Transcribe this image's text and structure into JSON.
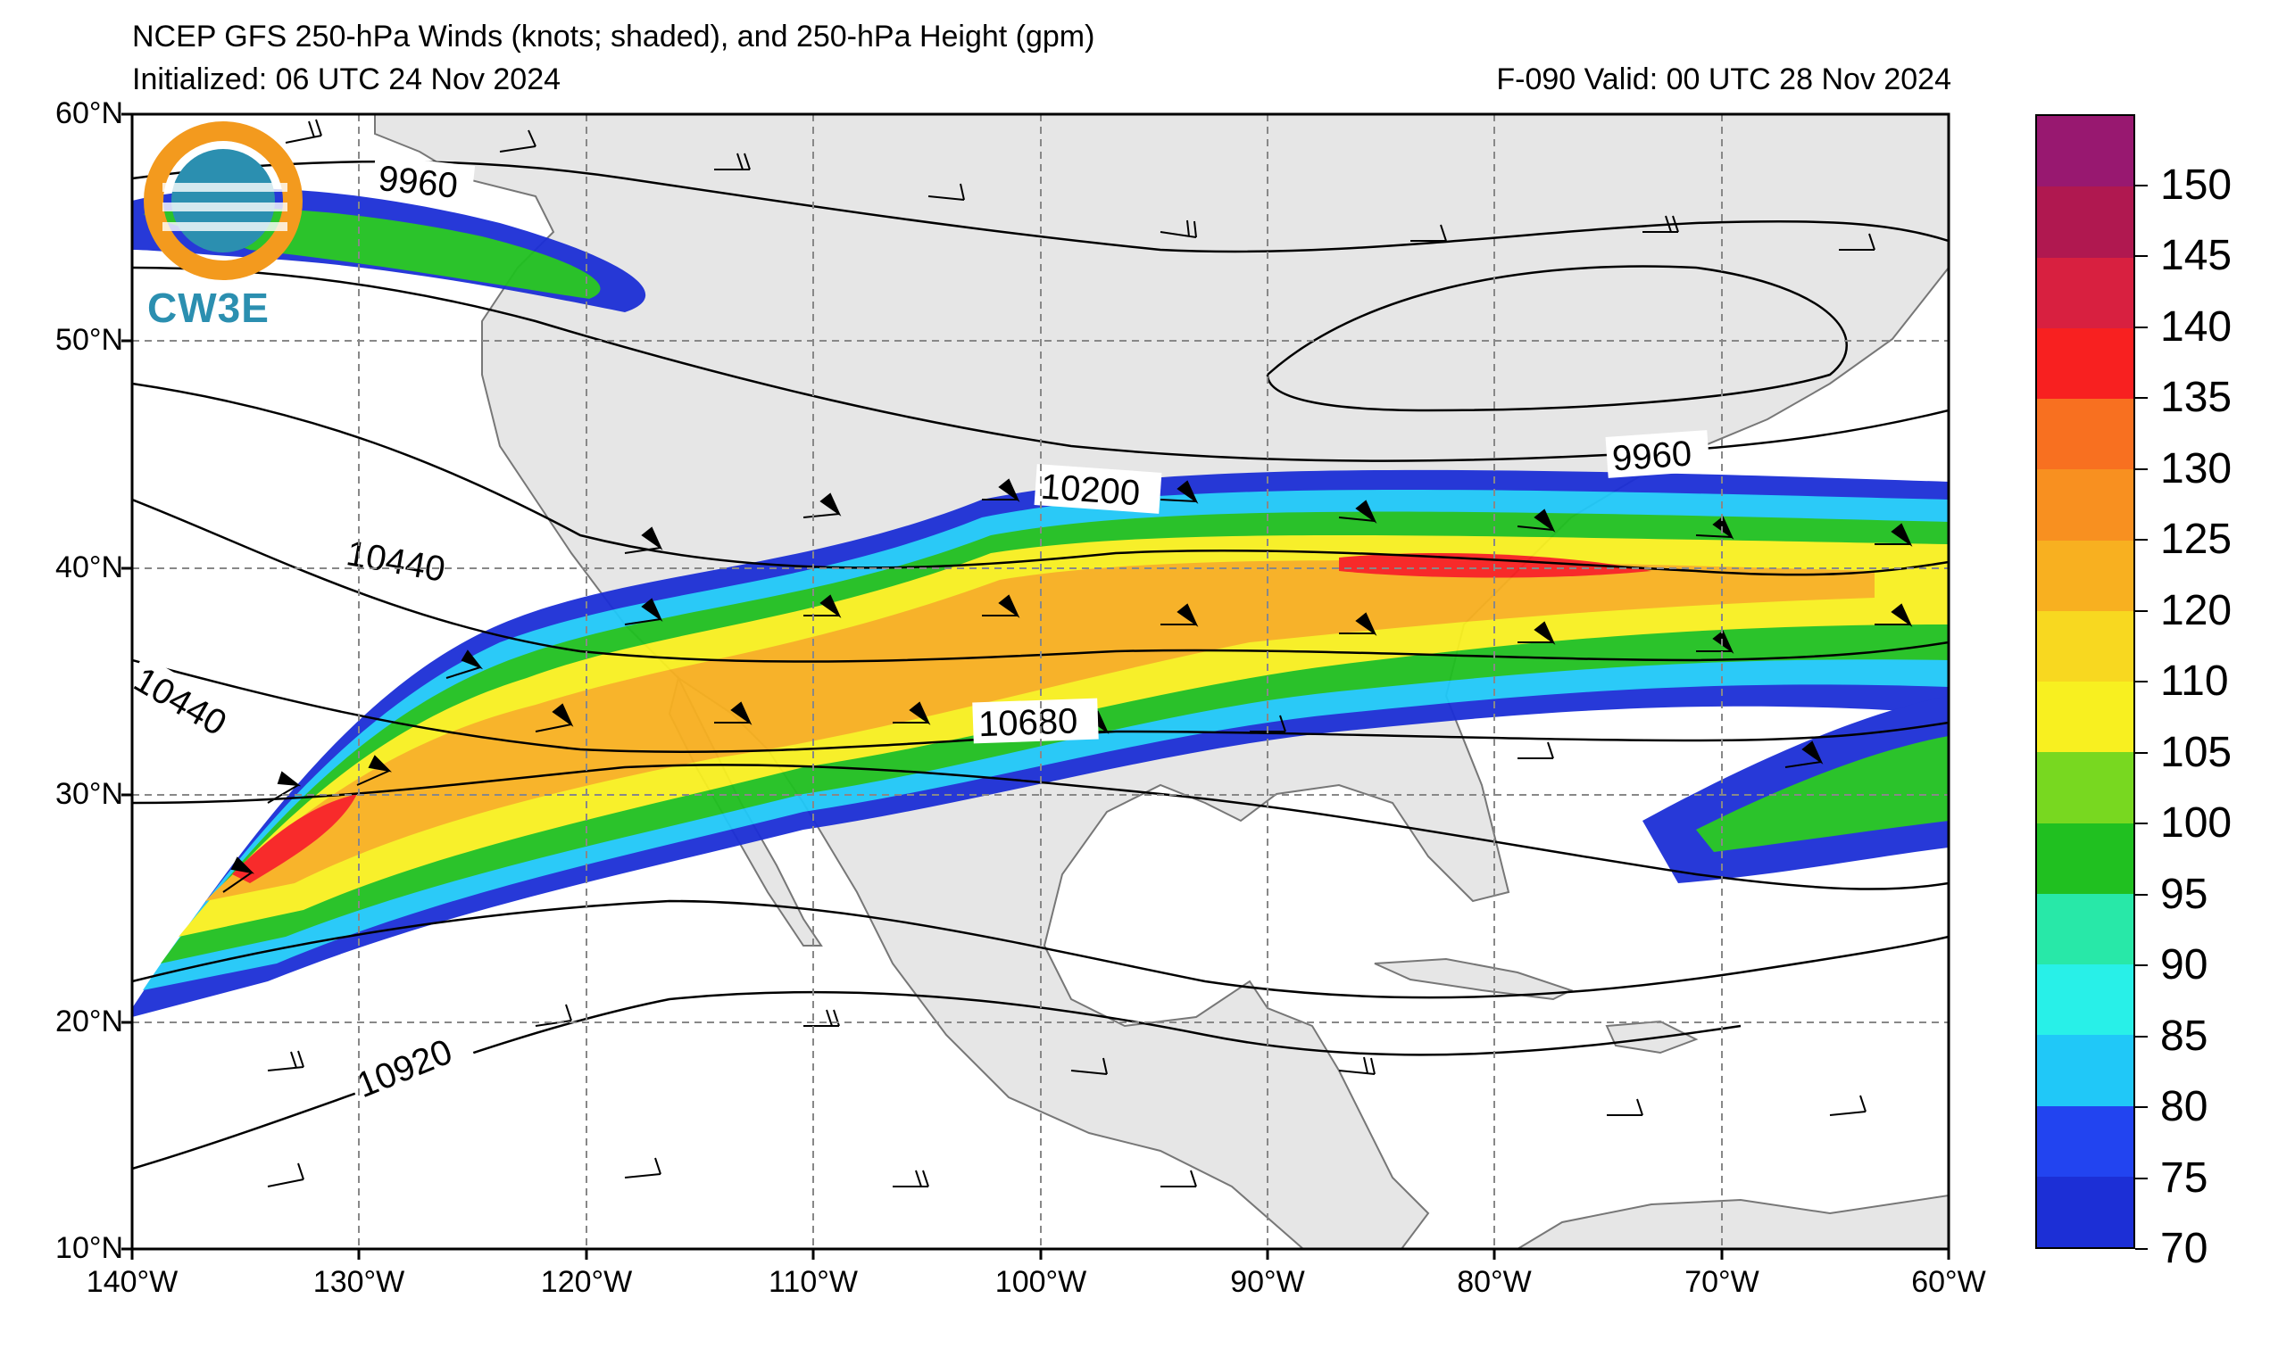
{
  "header": {
    "title": "NCEP GFS 250-hPa Winds (knots; shaded), and 250-hPa Height (gpm)",
    "initialized": "Initialized: 06 UTC 24 Nov 2024",
    "valid": "F-090  Valid: 00 UTC 28 Nov 2024"
  },
  "logo": {
    "text": "CW3E"
  },
  "map": {
    "lon_range": [
      -140,
      -60
    ],
    "lat_range": [
      10,
      60
    ],
    "lat_labels": [
      "60°N",
      "50°N",
      "40°N",
      "30°N",
      "20°N",
      "10°N"
    ],
    "lon_labels": [
      "140°W",
      "130°W",
      "120°W",
      "110°W",
      "100°W",
      "90°W",
      "80°W",
      "70°W",
      "60°W"
    ],
    "height_contour_labels": [
      "9960",
      "10440",
      "10200",
      "9960",
      "10440",
      "10680",
      "10920"
    ]
  },
  "colorbar": {
    "levels": [
      70,
      75,
      80,
      85,
      90,
      95,
      100,
      105,
      110,
      120,
      125,
      130,
      135,
      140,
      145,
      150
    ],
    "labels": [
      "70",
      "75",
      "80",
      "85",
      "90",
      "95",
      "100",
      "105",
      "110",
      "120",
      "125",
      "130",
      "135",
      "140",
      "145",
      "150"
    ],
    "colors": [
      "#1c2fd6",
      "#2244f0",
      "#20c8f8",
      "#28f0e8",
      "#28e8a8",
      "#20c020",
      "#78d820",
      "#f8f020",
      "#f8d820",
      "#f8b020",
      "#f89020",
      "#f87020",
      "#f82020",
      "#d82040",
      "#b01850",
      "#981870"
    ]
  }
}
